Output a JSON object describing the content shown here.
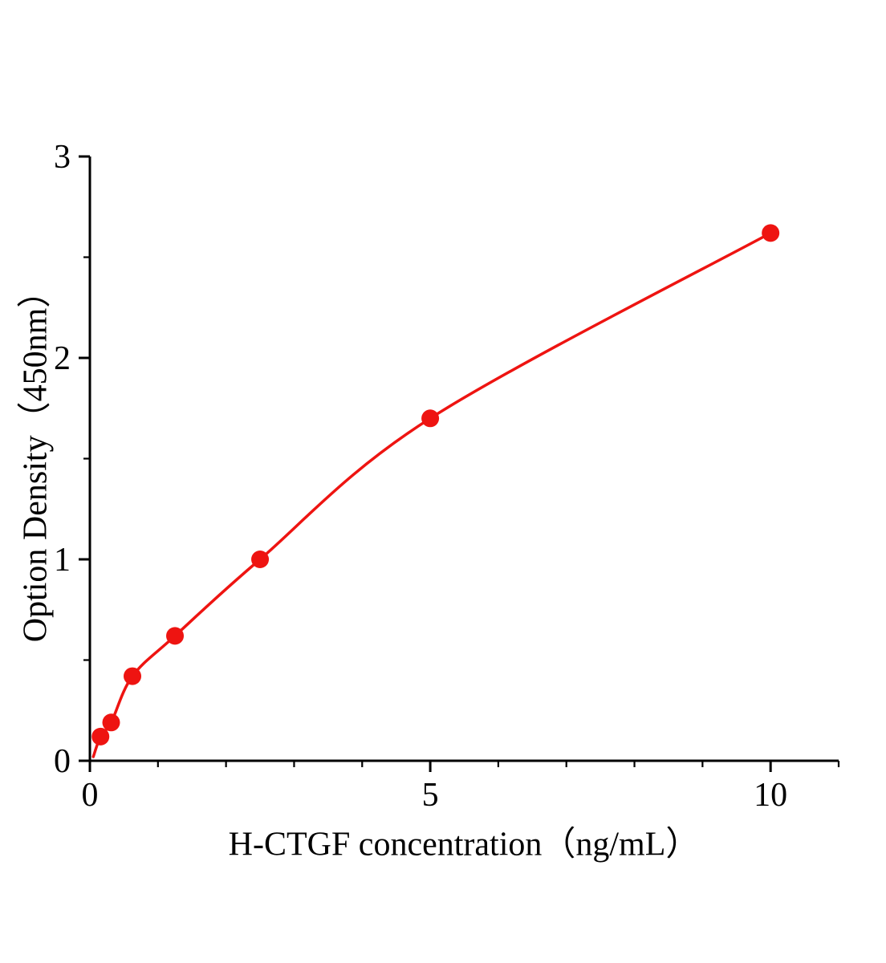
{
  "chart_data": {
    "type": "scatter",
    "title": "",
    "xlabel": "H-CTGF concentration（ng/mL）",
    "ylabel": "Option Density（450nm）",
    "x": [
      0.156,
      0.3125,
      0.625,
      1.25,
      2.5,
      5,
      10
    ],
    "y": [
      0.12,
      0.19,
      0.42,
      0.62,
      1.0,
      1.7,
      2.62
    ],
    "xlim": [
      0,
      11
    ],
    "ylim": [
      0,
      3
    ],
    "x_major_ticks": [
      0,
      5,
      10
    ],
    "y_major_ticks": [
      0,
      1,
      2,
      3
    ],
    "x_minor_step": 1,
    "y_minor_step": 0.5,
    "line_color": "#ee1411",
    "marker_color": "#ee1411",
    "axis_color": "#000000",
    "grid": false,
    "legend": "none",
    "curve": "smooth fitted curve through points, rising from origin"
  }
}
